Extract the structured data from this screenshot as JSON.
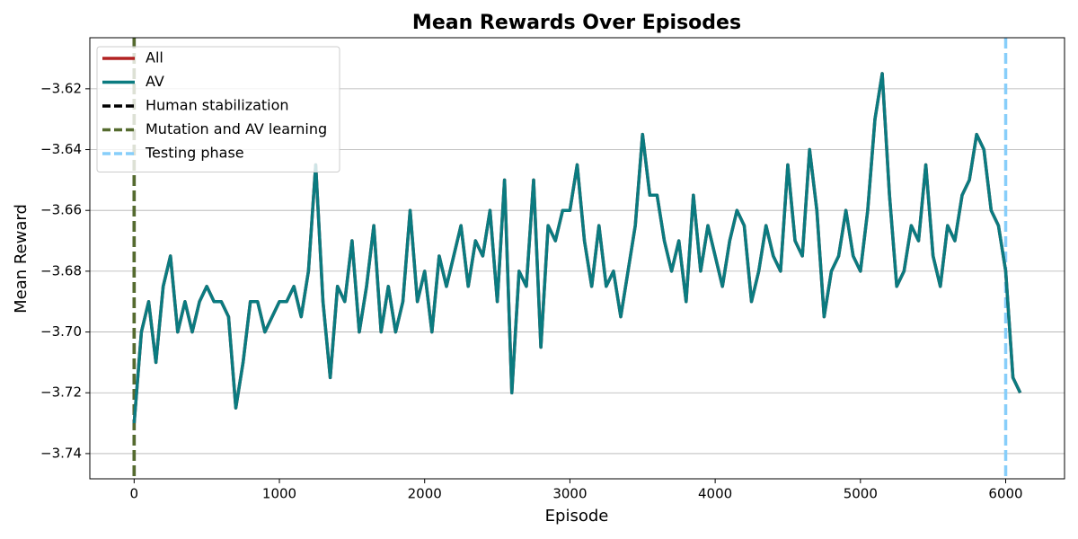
{
  "chart_data": {
    "type": "line",
    "title": "Mean Rewards Over Episodes",
    "xlabel": "Episode",
    "ylabel": "Mean Reward",
    "x": [
      0,
      50,
      100,
      150,
      200,
      250,
      300,
      350,
      400,
      450,
      500,
      550,
      600,
      650,
      700,
      750,
      800,
      850,
      900,
      950,
      1000,
      1050,
      1100,
      1150,
      1200,
      1250,
      1300,
      1350,
      1400,
      1450,
      1500,
      1550,
      1600,
      1650,
      1700,
      1750,
      1800,
      1850,
      1900,
      1950,
      2000,
      2050,
      2100,
      2150,
      2200,
      2250,
      2300,
      2350,
      2400,
      2450,
      2500,
      2550,
      2600,
      2650,
      2700,
      2750,
      2800,
      2850,
      2900,
      2950,
      3000,
      3050,
      3100,
      3150,
      3200,
      3250,
      3300,
      3350,
      3400,
      3450,
      3500,
      3550,
      3600,
      3650,
      3700,
      3750,
      3800,
      3850,
      3900,
      3950,
      4000,
      4050,
      4100,
      4150,
      4200,
      4250,
      4300,
      4350,
      4400,
      4450,
      4500,
      4550,
      4600,
      4650,
      4700,
      4750,
      4800,
      4850,
      4900,
      4950,
      5000,
      5050,
      5100,
      5150,
      5200,
      5250,
      5300,
      5350,
      5400,
      5450,
      5500,
      5550,
      5600,
      5650,
      5700,
      5750,
      5800,
      5850,
      5900,
      5950,
      6000,
      6050,
      6100
    ],
    "series": [
      {
        "name": "All",
        "color": "#b22222",
        "values": [
          -3.73,
          -3.7,
          -3.69,
          -3.71,
          -3.685,
          -3.675,
          -3.7,
          -3.69,
          -3.7,
          -3.69,
          -3.685,
          -3.69,
          -3.69,
          -3.695,
          -3.725,
          -3.71,
          -3.69,
          -3.69,
          -3.7,
          -3.695,
          -3.69,
          -3.69,
          -3.685,
          -3.695,
          -3.68,
          -3.645,
          -3.69,
          -3.715,
          -3.685,
          -3.69,
          -3.67,
          -3.7,
          -3.685,
          -3.665,
          -3.7,
          -3.685,
          -3.7,
          -3.69,
          -3.66,
          -3.69,
          -3.68,
          -3.7,
          -3.675,
          -3.685,
          -3.675,
          -3.665,
          -3.685,
          -3.67,
          -3.675,
          -3.66,
          -3.69,
          -3.65,
          -3.72,
          -3.68,
          -3.685,
          -3.65,
          -3.705,
          -3.665,
          -3.67,
          -3.66,
          -3.66,
          -3.645,
          -3.67,
          -3.685,
          -3.665,
          -3.685,
          -3.68,
          -3.695,
          -3.68,
          -3.665,
          -3.635,
          -3.655,
          -3.655,
          -3.67,
          -3.68,
          -3.67,
          -3.69,
          -3.655,
          -3.68,
          -3.665,
          -3.675,
          -3.685,
          -3.67,
          -3.66,
          -3.665,
          -3.69,
          -3.68,
          -3.665,
          -3.675,
          -3.68,
          -3.645,
          -3.67,
          -3.675,
          -3.64,
          -3.66,
          -3.695,
          -3.68,
          -3.675,
          -3.66,
          -3.675,
          -3.68,
          -3.66,
          -3.63,
          -3.615,
          -3.655,
          -3.685,
          -3.68,
          -3.665,
          -3.67,
          -3.645,
          -3.675,
          -3.685,
          -3.665,
          -3.67,
          -3.655,
          -3.65,
          -3.635,
          -3.64,
          -3.66,
          -3.665,
          -3.68,
          -3.715,
          -3.72
        ]
      },
      {
        "name": "AV",
        "color": "#0b7b80",
        "values": [
          -3.73,
          -3.7,
          -3.69,
          -3.71,
          -3.685,
          -3.675,
          -3.7,
          -3.69,
          -3.7,
          -3.69,
          -3.685,
          -3.69,
          -3.69,
          -3.695,
          -3.725,
          -3.71,
          -3.69,
          -3.69,
          -3.7,
          -3.695,
          -3.69,
          -3.69,
          -3.685,
          -3.695,
          -3.68,
          -3.645,
          -3.69,
          -3.715,
          -3.685,
          -3.69,
          -3.67,
          -3.7,
          -3.685,
          -3.665,
          -3.7,
          -3.685,
          -3.7,
          -3.69,
          -3.66,
          -3.69,
          -3.68,
          -3.7,
          -3.675,
          -3.685,
          -3.675,
          -3.665,
          -3.685,
          -3.67,
          -3.675,
          -3.66,
          -3.69,
          -3.65,
          -3.72,
          -3.68,
          -3.685,
          -3.65,
          -3.705,
          -3.665,
          -3.67,
          -3.66,
          -3.66,
          -3.645,
          -3.67,
          -3.685,
          -3.665,
          -3.685,
          -3.68,
          -3.695,
          -3.68,
          -3.665,
          -3.635,
          -3.655,
          -3.655,
          -3.67,
          -3.68,
          -3.67,
          -3.69,
          -3.655,
          -3.68,
          -3.665,
          -3.675,
          -3.685,
          -3.67,
          -3.66,
          -3.665,
          -3.69,
          -3.68,
          -3.665,
          -3.675,
          -3.68,
          -3.645,
          -3.67,
          -3.675,
          -3.64,
          -3.66,
          -3.695,
          -3.68,
          -3.675,
          -3.66,
          -3.675,
          -3.68,
          -3.66,
          -3.63,
          -3.615,
          -3.655,
          -3.685,
          -3.68,
          -3.665,
          -3.67,
          -3.645,
          -3.675,
          -3.685,
          -3.665,
          -3.67,
          -3.655,
          -3.65,
          -3.635,
          -3.64,
          -3.66,
          -3.665,
          -3.68,
          -3.715,
          -3.72
        ]
      }
    ],
    "vlines": [
      {
        "name": "Human stabilization",
        "color": "#000000",
        "x": 0
      },
      {
        "name": "Mutation and AV learning",
        "color": "#556b2f",
        "x": 0
      },
      {
        "name": "Testing phase",
        "color": "#87cefa",
        "x": 6000
      }
    ],
    "xlim": [
      -305,
      6405
    ],
    "xticks": [
      0,
      1000,
      2000,
      3000,
      4000,
      5000,
      6000
    ],
    "ylim": [
      -3.7483,
      -3.6032
    ],
    "yticks": [
      {
        "value": -3.74,
        "label": "−3.74"
      },
      {
        "value": -3.72,
        "label": "−3.72"
      },
      {
        "value": -3.7,
        "label": "−3.70"
      },
      {
        "value": -3.68,
        "label": "−3.68"
      },
      {
        "value": -3.66,
        "label": "−3.66"
      },
      {
        "value": -3.64,
        "label": "−3.64"
      },
      {
        "value": -3.62,
        "label": "−3.62"
      }
    ],
    "grid": "y",
    "legend": "upper left"
  }
}
